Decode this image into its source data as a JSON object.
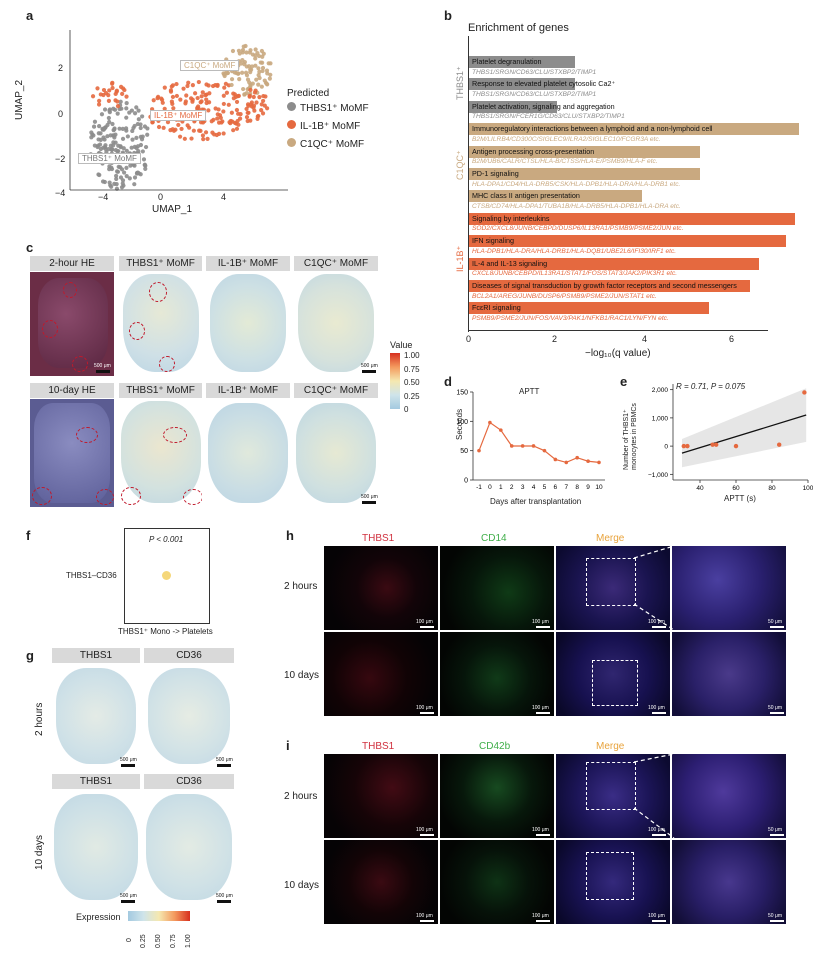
{
  "panel_labels": {
    "a": "a",
    "b": "b",
    "c": "c",
    "d": "d",
    "e": "e",
    "f": "f",
    "g": "g",
    "h": "h",
    "i": "i"
  },
  "panel_a": {
    "xlabel": "UMAP_1",
    "ylabel": "UMAP_2",
    "xticks": [
      "−4",
      "0",
      "4"
    ],
    "yticks": [
      "2",
      "0",
      "−2",
      "−4"
    ],
    "legend_title": "Predicted",
    "legend": [
      {
        "label": "THBS1⁺ MoMF",
        "color": "#8c8c8c"
      },
      {
        "label": "IL-1B⁺ MoMF",
        "color": "#e5693f"
      },
      {
        "label": "C1QC⁺ MoMF",
        "color": "#c9a980"
      }
    ],
    "cluster_labels": [
      "C1QC⁺ MoMF",
      "IL-1B⁺ MoMF",
      "THBS1⁺ MoMF"
    ]
  },
  "panel_b": {
    "title": "Enrichment of genes",
    "xlabel": "−log₁₀(q value)",
    "xticks": [
      "0",
      "2",
      "4",
      "6"
    ],
    "groups": [
      {
        "label": "THBS1⁺",
        "color": "#8c8c8c"
      },
      {
        "label": "C1QC⁺",
        "color": "#c9a980"
      },
      {
        "label": "IL-1B⁺",
        "color": "#e5693f"
      }
    ],
    "terms": [
      {
        "term": "Platelet degranulation",
        "value": 2.3,
        "group": 0,
        "genes": "THBS1/SRGN/CD63/CLU/STXBP2/TIMP1"
      },
      {
        "term": "Response to elevated platelet cytosolic Ca2⁺",
        "value": 2.3,
        "group": 0,
        "genes": "THBS1/SRGN/CD63/CLU/STXBP2/TIMP1"
      },
      {
        "term": "Platelet activation, signaling and aggregation",
        "value": 1.9,
        "group": 0,
        "genes": "THBS1/SRGN/FCER1G/CD63/CLU/STXBP2/TIMP1"
      },
      {
        "term": "Immunoregulatory interactions between a lymphoid and a non-lymphoid cell",
        "value": 7.3,
        "group": 1,
        "genes": "B2M/LILRB4/CD300C/SIGLEC9/ILRA2/SIGLEC10/FCGR3A etc."
      },
      {
        "term": "Antigen processing cross-presentation",
        "value": 5.1,
        "group": 1,
        "genes": "B2M/UB6/CALR/CTSL/HLA-B/CTSS/HLA-E/PSMB9/HLA-F etc."
      },
      {
        "term": "PD-1 signaling",
        "value": 5.1,
        "group": 1,
        "genes": "HLA-DPA1/CD4/HLA-DRB5/CSK/HLA-DPB1/HLA-DRA/HLA-DRB1 etc."
      },
      {
        "term": "MHC class II antigen presentation",
        "value": 3.8,
        "group": 1,
        "genes": "CTSB/CD74/HLA-DPA1/TUBA1B/HLA-DRB5/HLA-DPB1/HLA-DRA etc."
      },
      {
        "term": "Signaling by interleukins",
        "value": 7.2,
        "group": 2,
        "genes": "SOD2/CXCL8/JUNB/CEBPD/DUSP6/IL13RA1/PSMB9/PSME2/JUN etc."
      },
      {
        "term": "IFN signaling",
        "value": 7.0,
        "group": 2,
        "genes": "HLA-DPB1/HLA-DRA/HLA-DRB1/HLA-DQB1/UBE2L6/IFI30/IRF1 etc."
      },
      {
        "term": "IL-4 and IL-13 signaling",
        "value": 6.4,
        "group": 2,
        "genes": "CXCL8/JUNB/CEBPD/IL13RA1/STAT1/FOS/STAT3/JAK2/PIK3R1 etc."
      },
      {
        "term": "Diseases of signal transduction by growth factor receptors and second messengers",
        "value": 6.2,
        "group": 2,
        "genes": "BCL2A1/AREG/JUNB/DUSP6/PSMB9/PSME2/JUN/STAT1 etc."
      },
      {
        "term": "FcεRI signaling",
        "value": 5.3,
        "group": 2,
        "genes": "PSMB9/PSME2/JUN/FOS/VAV3/PAK1/NFKB1/RAC1/LYN/FYN etc."
      }
    ]
  },
  "panel_c": {
    "rows": [
      {
        "label": "2-hour HE",
        "headers": [
          "THBS1⁺ MoMF",
          "IL-1B⁺ MoMF",
          "C1QC⁺ MoMF"
        ]
      },
      {
        "label": "10-day HE",
        "headers": [
          "THBS1⁺ MoMF",
          "IL-1B⁺ MoMF",
          "C1QC⁺ MoMF"
        ]
      }
    ],
    "scalebar": "500 μm",
    "colorbar_title": "Value",
    "colorbar_ticks": [
      "1.00",
      "0.75",
      "0.50",
      "0.25",
      "0"
    ]
  },
  "chart_data": [
    {
      "type": "line",
      "panel": "d",
      "title": "APTT",
      "xlabel": "Days after transplantation",
      "ylabel": "Seconds",
      "x": [
        "-1",
        "0",
        "1",
        "2",
        "3",
        "4",
        "5",
        "6",
        "7",
        "8",
        "9",
        "10"
      ],
      "y": [
        50,
        98,
        85,
        58,
        58,
        58,
        50,
        35,
        30,
        38,
        32,
        30
      ],
      "ylim": [
        0,
        150
      ],
      "yticks": [
        "0",
        "50",
        "100",
        "150"
      ],
      "color": "#e5693f"
    },
    {
      "type": "scatter",
      "panel": "e",
      "annotation": "R = 0.71, P = 0.075",
      "xlabel": "APTT (s)",
      "ylabel": "Number of THBS1⁺ monocytes in PBMCs",
      "x": [
        31,
        33,
        47,
        49,
        60,
        84,
        98
      ],
      "y": [
        0,
        0,
        50,
        50,
        0,
        50,
        1900
      ],
      "xlim": [
        25,
        100
      ],
      "ylim": [
        -1200,
        2200
      ],
      "xticks": [
        "40",
        "60",
        "80",
        "100"
      ],
      "yticks": [
        "2,000",
        "1,000",
        "0",
        "−1,000"
      ],
      "fit": {
        "x0": 30,
        "y0": -250,
        "x1": 99,
        "y1": 1100
      },
      "color": "#e5693f"
    }
  ],
  "panel_f": {
    "annotation": "P < 0.001",
    "ylabel": "THBS1–CD36",
    "xlabel": "THBS1⁺ Mono -> Platelets",
    "dot_color": "#f5d77a"
  },
  "panel_g": {
    "row_labels": [
      "2 hours",
      "10 days"
    ],
    "headers": [
      "THBS1",
      "CD36"
    ],
    "scalebar": "500 μm",
    "colorbar_title": "Expression",
    "colorbar_ticks": [
      "0",
      "0.25",
      "0.50",
      "0.75",
      "1.00"
    ]
  },
  "panel_h": {
    "channels": [
      {
        "label": "THBS1",
        "color": "#d0303e"
      },
      {
        "label": "CD14",
        "color": "#3fae49"
      },
      {
        "label": "Merge",
        "color": "#e8a33c"
      }
    ],
    "row_labels": [
      "2 hours",
      "10 days"
    ],
    "scalebar": "100 μm",
    "zoom_scalebar": "50 μm"
  },
  "panel_i": {
    "channels": [
      {
        "label": "THBS1",
        "color": "#d0303e"
      },
      {
        "label": "CD42b",
        "color": "#3fae49"
      },
      {
        "label": "Merge",
        "color": "#e8a33c"
      }
    ],
    "row_labels": [
      "2 hours",
      "10 days"
    ],
    "scalebar": "100 μm",
    "zoom_scalebar": "50 μm"
  }
}
